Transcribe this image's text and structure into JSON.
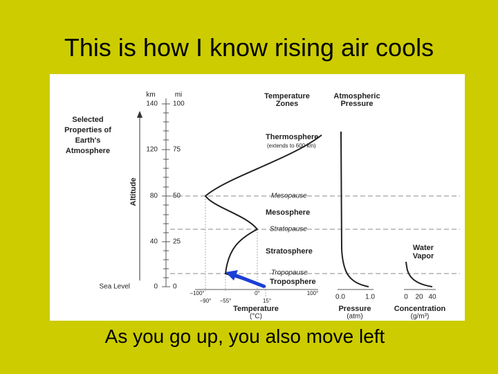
{
  "title": "This is how I know rising air cools",
  "caption": "As you go up, you also move left",
  "diagram": {
    "heading": [
      "Selected",
      "Properties of",
      "Earth's",
      "Atmosphere"
    ],
    "altitude_axis": {
      "km_unit": "km",
      "mi_unit": "mi",
      "label": "Altitude",
      "sea_level": "Sea Level",
      "km_ticks": [
        "140",
        "120",
        "80",
        "40",
        "0"
      ],
      "mi_ticks": [
        "100",
        "75",
        "50",
        "25",
        "0"
      ]
    },
    "temperature_zones_header": [
      "Temperature",
      "Zones"
    ],
    "pressure_header": [
      "Atmospheric",
      "Pressure"
    ],
    "zones": {
      "thermosphere": "Thermosphere",
      "thermosphere_note": "(extends to 600 km)",
      "mesopause": "Mesopause",
      "mesosphere": "Mesosphere",
      "stratopause": "Stratopause",
      "stratosphere": "Stratosphere",
      "tropopause": "Tropopause",
      "troposphere": "Troposphere"
    },
    "temperature_axis": {
      "ticks_top": [
        "−100°",
        "0°",
        "100°"
      ],
      "ticks_bottom": [
        "−90°",
        "−55°",
        "15°"
      ],
      "label": [
        "Temperature",
        "(°C)"
      ]
    },
    "pressure_axis": {
      "ticks": [
        "0.0",
        "1.0"
      ],
      "label": [
        "Pressure",
        "(atm)"
      ]
    },
    "water_vapor": {
      "header": [
        "Water",
        "Vapor"
      ],
      "ticks": [
        "0",
        "20",
        "40"
      ],
      "label": [
        "Concentration",
        "(g/m³)"
      ]
    }
  }
}
